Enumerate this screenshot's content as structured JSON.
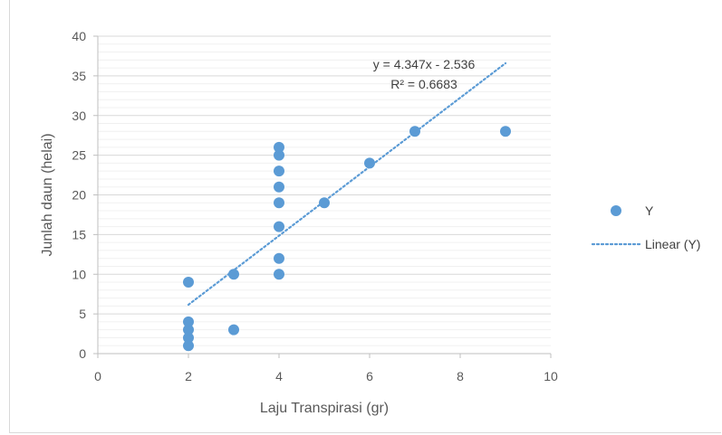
{
  "chart_data": {
    "type": "scatter",
    "title": "",
    "xlabel": "Laju Transpirasi (gr)",
    "ylabel": "Junlah daun (helai)",
    "xlim": [
      0,
      10
    ],
    "ylim": [
      0,
      40
    ],
    "xticks": [
      "0",
      "2",
      "4",
      "6",
      "8",
      "10"
    ],
    "yticks": [
      "0",
      "5",
      "10",
      "15",
      "20",
      "25",
      "30",
      "35",
      "40"
    ],
    "grid": true,
    "legend_position": "right",
    "series": [
      {
        "name": "Y",
        "color": "#5b9bd5",
        "points": [
          [
            2,
            1
          ],
          [
            2,
            2
          ],
          [
            2,
            3
          ],
          [
            2,
            4
          ],
          [
            2,
            9
          ],
          [
            3,
            3
          ],
          [
            3,
            10
          ],
          [
            4,
            10
          ],
          [
            4,
            12
          ],
          [
            4,
            16
          ],
          [
            4,
            19
          ],
          [
            4,
            21
          ],
          [
            4,
            23
          ],
          [
            4,
            25
          ],
          [
            4,
            26
          ],
          [
            5,
            19
          ],
          [
            6,
            24
          ],
          [
            7,
            28
          ],
          [
            9,
            28
          ]
        ]
      }
    ],
    "trendline": {
      "name": "Linear (Y)",
      "slope": 4.347,
      "intercept": -2.536,
      "x_range": [
        2,
        9
      ],
      "equation": "y = 4.347x - 2.536",
      "r_squared": "R² = 0.6683",
      "color": "#5b9bd5"
    }
  }
}
